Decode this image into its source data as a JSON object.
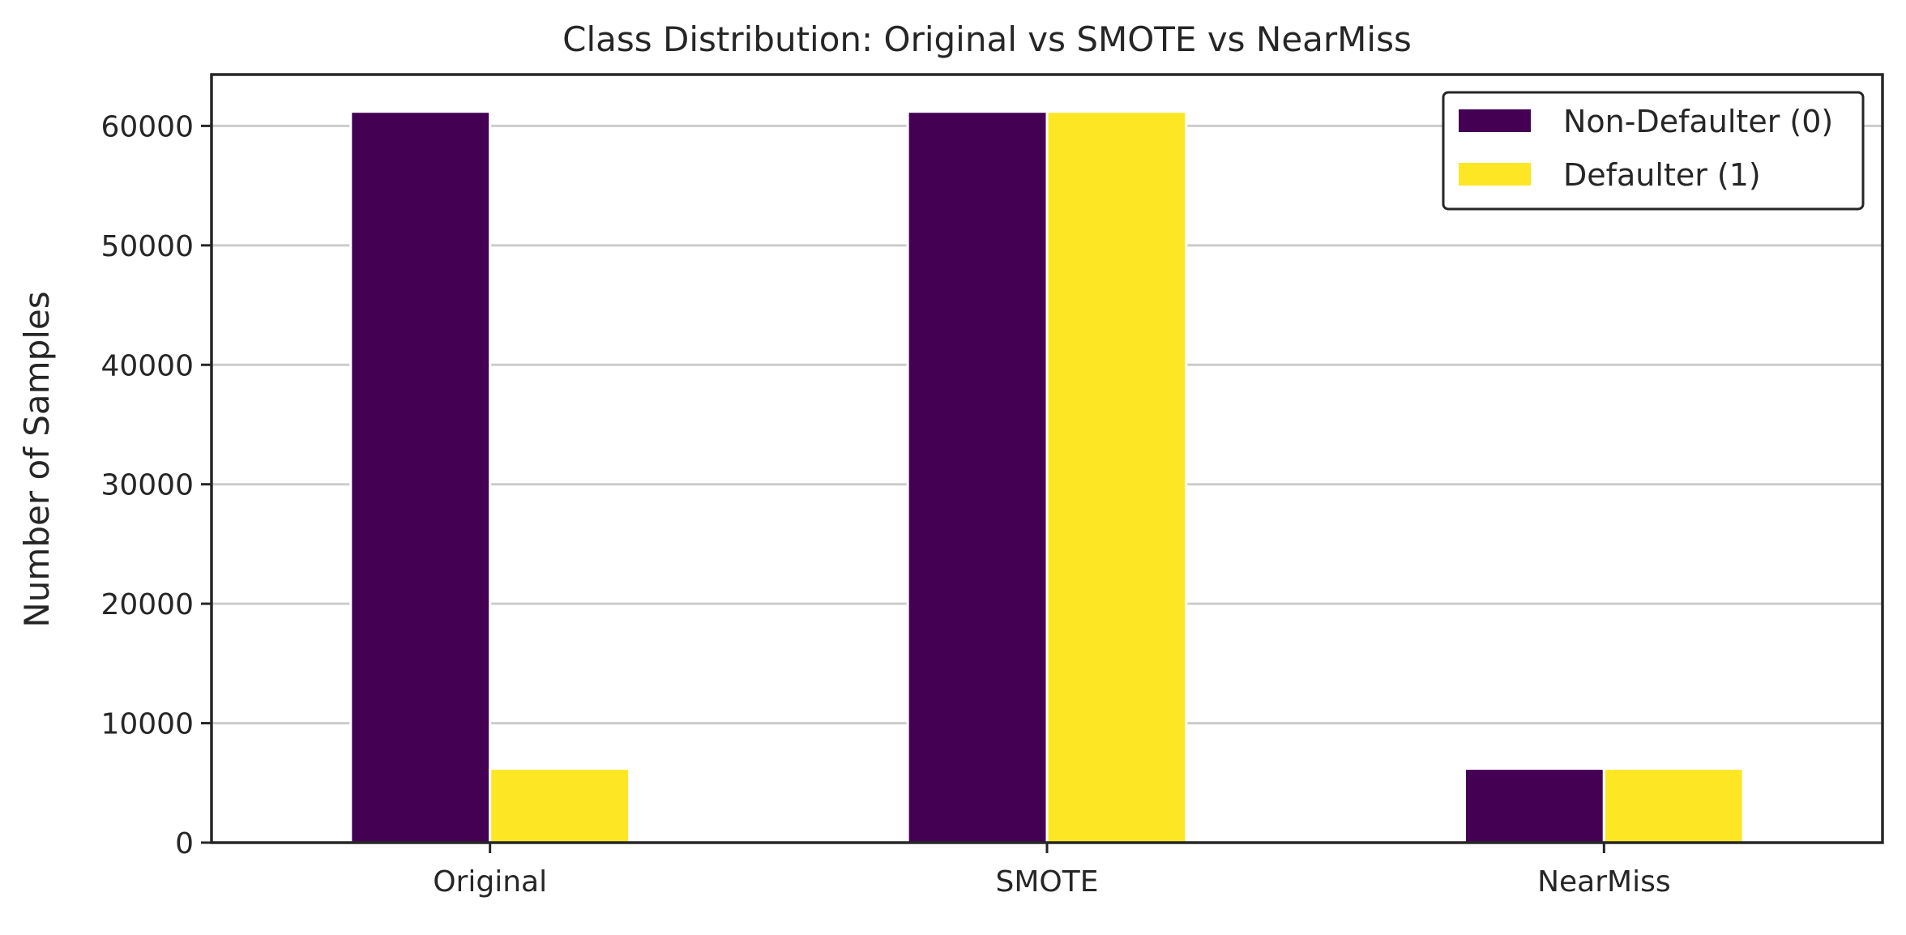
{
  "chart_data": {
    "type": "bar",
    "title": "Class Distribution: Original vs SMOTE vs NearMiss",
    "xlabel": "",
    "ylabel": "Number of Samples",
    "categories": [
      "Original",
      "SMOTE",
      "NearMiss"
    ],
    "series": [
      {
        "name": "Non-Defaulter (0)",
        "color": "#440154",
        "values": [
          61200,
          61200,
          6200
        ]
      },
      {
        "name": "Defaulter (1)",
        "color": "#fde725",
        "values": [
          6200,
          61200,
          6200
        ]
      }
    ],
    "ylim": [
      0,
      64300
    ],
    "yticks": [
      0,
      10000,
      20000,
      30000,
      40000,
      50000,
      60000
    ],
    "grid": "y",
    "legend_position": "top-right"
  }
}
